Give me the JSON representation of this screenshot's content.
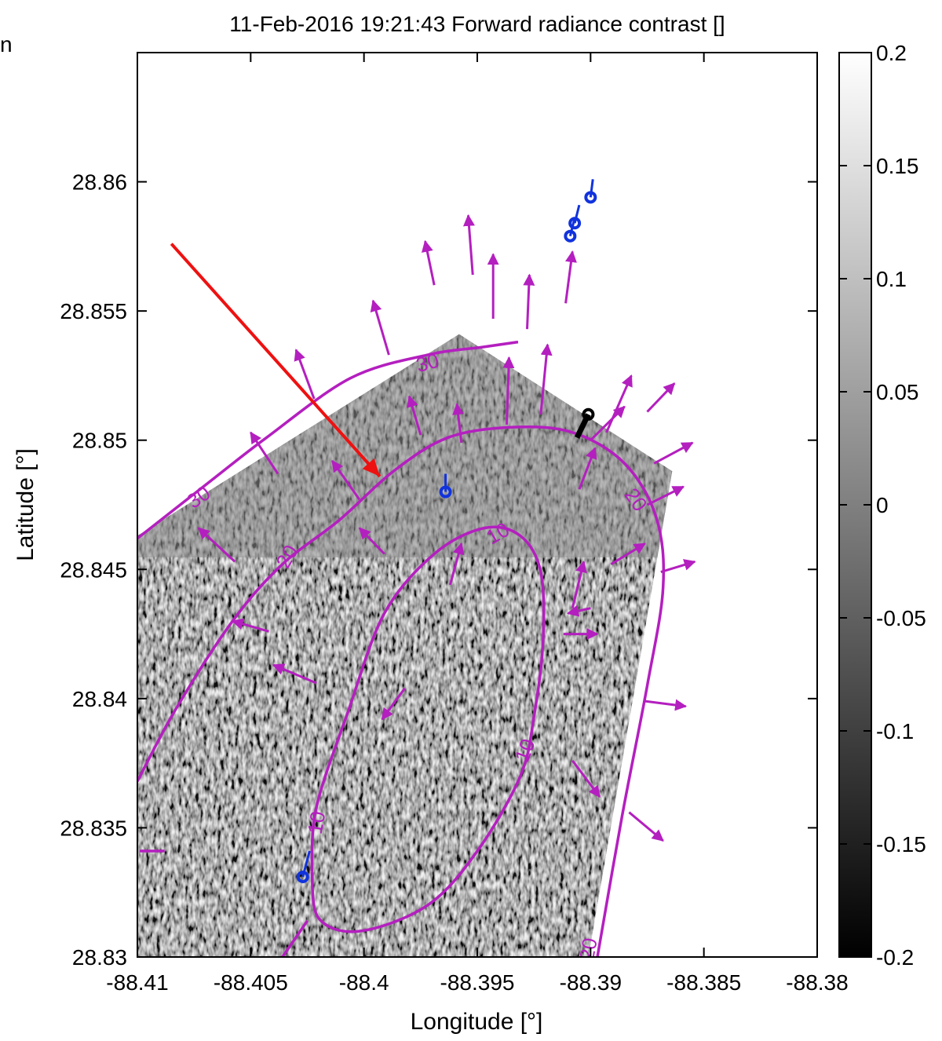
{
  "corner_text": "n",
  "chart_data": {
    "type": "heatmap",
    "title": "11-Feb-2016 19:21:43 Forward radiance contrast []",
    "xlabel": "Longitude [°]",
    "ylabel": "Latitude [°]",
    "xlim": [
      -88.41,
      -88.38
    ],
    "ylim": [
      28.83,
      28.865
    ],
    "x_ticks": [
      -88.41,
      -88.405,
      -88.4,
      -88.395,
      -88.39,
      -88.385,
      -88.38
    ],
    "x_tick_labels": [
      "-88.41",
      "-88.405",
      "-88.4",
      "-88.395",
      "-88.39",
      "-88.385",
      "-88.38"
    ],
    "y_ticks": [
      28.83,
      28.835,
      28.84,
      28.845,
      28.85,
      28.855,
      28.86
    ],
    "y_tick_labels": [
      "28.83",
      "28.835",
      "28.84",
      "28.845",
      "28.85",
      "28.855",
      "28.86"
    ],
    "colorbar": {
      "range": [
        -0.2,
        0.2
      ],
      "ticks": [
        0.2,
        0.15,
        0.1,
        0.05,
        0,
        -0.05,
        -0.1,
        -0.15,
        -0.2
      ],
      "tick_labels": [
        "0.2",
        "0.15",
        "0.1",
        "0.05",
        "0",
        "-0.05",
        "-0.1",
        "-0.15",
        "-0.2"
      ],
      "colormap": "gray"
    },
    "image_footprint": [
      [
        -88.41,
        28.8463
      ],
      [
        -88.3958,
        28.8541
      ],
      [
        -88.3864,
        28.8488
      ],
      [
        -88.3901,
        28.83
      ],
      [
        -88.41,
        28.83
      ]
    ],
    "contours": [
      {
        "level_label": "10",
        "points": [
          [
            -88.4023,
            28.8333
          ],
          [
            -88.4021,
            28.8358
          ],
          [
            -88.4007,
            28.8395
          ],
          [
            -88.3991,
            28.8433
          ],
          [
            -88.3969,
            28.8456
          ],
          [
            -88.3947,
            28.8466
          ],
          [
            -88.3931,
            28.8463
          ],
          [
            -88.3922,
            28.8449
          ],
          [
            -88.3921,
            28.8422
          ],
          [
            -88.3925,
            28.8393
          ],
          [
            -88.3931,
            28.837
          ],
          [
            -88.395,
            28.8341
          ],
          [
            -88.3972,
            28.832
          ],
          [
            -88.4002,
            28.831
          ],
          [
            -88.402,
            28.8315
          ],
          [
            -88.4023,
            28.8333
          ]
        ],
        "labels": [
          {
            "text": "10",
            "x": -88.3941,
            "y": 28.8464,
            "angle": -30
          },
          {
            "text": "10",
            "x": -88.3929,
            "y": 28.838,
            "angle": -70
          },
          {
            "text": "10",
            "x": -88.4021,
            "y": 28.8352,
            "angle": -80
          }
        ]
      },
      {
        "level_label": "20",
        "points": [
          [
            -88.41,
            28.8368
          ],
          [
            -88.4083,
            28.8396
          ],
          [
            -88.4058,
            28.843
          ],
          [
            -88.4036,
            28.8452
          ],
          [
            -88.4011,
            28.8469
          ],
          [
            -88.3987,
            28.8488
          ],
          [
            -88.3963,
            28.8501
          ],
          [
            -88.3935,
            28.8505
          ],
          [
            -88.3908,
            28.8503
          ],
          [
            -88.3885,
            28.8491
          ],
          [
            -88.3871,
            28.847
          ],
          [
            -88.3868,
            28.8443
          ],
          [
            -88.3875,
            28.8405
          ],
          [
            -88.3886,
            28.8355
          ],
          [
            -88.3897,
            28.83
          ]
        ],
        "labels": [
          {
            "text": "20",
            "x": -88.4034,
            "y": 28.8455,
            "angle": -60
          },
          {
            "text": "20",
            "x": -88.388,
            "y": 28.8477,
            "angle": 55
          },
          {
            "text": "20",
            "x": -88.3901,
            "y": 28.8303,
            "angle": -80
          }
        ]
      },
      {
        "level_label": "30",
        "points": [
          [
            -88.41,
            28.8462
          ],
          [
            -88.4068,
            28.8484
          ],
          [
            -88.4043,
            28.8501
          ],
          [
            -88.4006,
            28.8524
          ],
          [
            -88.3972,
            28.8533
          ],
          [
            -88.3948,
            28.8536
          ],
          [
            -88.3932,
            28.8538
          ]
        ],
        "labels": [
          {
            "text": "30",
            "x": -88.4073,
            "y": 28.8478,
            "angle": -35
          },
          {
            "text": "30",
            "x": -88.3972,
            "y": 28.853,
            "angle": -15
          }
        ]
      },
      {
        "level_label": "",
        "points": [
          [
            -88.4099,
            28.8341
          ],
          [
            -88.4088,
            28.8341
          ]
        ],
        "labels": []
      },
      {
        "level_label": "",
        "points": [
          [
            -88.4025,
            28.8314
          ],
          [
            -88.4036,
            28.83
          ]
        ],
        "labels": []
      }
    ],
    "vectors": [
      {
        "x": -88.4057,
        "y": 28.8453,
        "dx": -0.0016,
        "dy": 0.0013
      },
      {
        "x": -88.4038,
        "y": 28.8487,
        "dx": -0.0012,
        "dy": 0.0016
      },
      {
        "x": -88.4042,
        "y": 28.8426,
        "dx": -0.0016,
        "dy": 0.0004
      },
      {
        "x": -88.4021,
        "y": 28.8406,
        "dx": -0.0019,
        "dy": 0.0007
      },
      {
        "x": -88.4002,
        "y": 28.8477,
        "dx": -0.0012,
        "dy": 0.0015
      },
      {
        "x": -88.4022,
        "y": 28.8516,
        "dx": -0.0008,
        "dy": 0.0019
      },
      {
        "x": -88.3989,
        "y": 28.8533,
        "dx": -0.0007,
        "dy": 0.0021
      },
      {
        "x": -88.3969,
        "y": 28.856,
        "dx": -0.0004,
        "dy": 0.0017
      },
      {
        "x": -88.3952,
        "y": 28.8564,
        "dx": -0.0002,
        "dy": 0.0023
      },
      {
        "x": -88.3943,
        "y": 28.8547,
        "dx": 0.0,
        "dy": 0.0025
      },
      {
        "x": -88.3928,
        "y": 28.8543,
        "dx": 0.0001,
        "dy": 0.0021
      },
      {
        "x": -88.3911,
        "y": 28.8553,
        "dx": 0.0003,
        "dy": 0.002
      },
      {
        "x": -88.3975,
        "y": 28.8502,
        "dx": -0.0005,
        "dy": 0.0015
      },
      {
        "x": -88.3957,
        "y": 28.8499,
        "dx": -0.0002,
        "dy": 0.0015
      },
      {
        "x": -88.3937,
        "y": 28.8506,
        "dx": 0.0001,
        "dy": 0.0026
      },
      {
        "x": -88.3922,
        "y": 28.851,
        "dx": 0.0003,
        "dy": 0.0027
      },
      {
        "x": -88.3905,
        "y": 28.8481,
        "dx": 0.0007,
        "dy": 0.0016
      },
      {
        "x": -88.3893,
        "y": 28.8503,
        "dx": 0.0011,
        "dy": 0.0022
      },
      {
        "x": -88.3875,
        "y": 28.8511,
        "dx": 0.0012,
        "dy": 0.0011
      },
      {
        "x": -88.39,
        "y": 28.85,
        "dx": 0.0015,
        "dy": 0.0013
      },
      {
        "x": -88.3872,
        "y": 28.8491,
        "dx": 0.0017,
        "dy": 0.0008
      },
      {
        "x": -88.3875,
        "y": 28.8475,
        "dx": 0.0016,
        "dy": 0.0007
      },
      {
        "x": -88.3908,
        "y": 28.8435,
        "dx": 0.0005,
        "dy": 0.0018
      },
      {
        "x": -88.3891,
        "y": 28.8452,
        "dx": 0.0015,
        "dy": 0.0008
      },
      {
        "x": -88.3869,
        "y": 28.8449,
        "dx": 0.0015,
        "dy": 0.0004
      },
      {
        "x": -88.3912,
        "y": 28.8425,
        "dx": 0.0015,
        "dy": 0.0
      },
      {
        "x": -88.39,
        "y": 28.8435,
        "dx": -0.001,
        "dy": -0.0002
      },
      {
        "x": -88.3876,
        "y": 28.8399,
        "dx": 0.0018,
        "dy": -0.0002
      },
      {
        "x": -88.3908,
        "y": 28.8376,
        "dx": 0.0012,
        "dy": -0.0014
      },
      {
        "x": -88.3883,
        "y": 28.8356,
        "dx": 0.0015,
        "dy": -0.0011
      },
      {
        "x": -88.3982,
        "y": 28.8404,
        "dx": -0.001,
        "dy": -0.0012
      },
      {
        "x": -88.3962,
        "y": 28.8444,
        "dx": 0.0005,
        "dy": 0.0016
      },
      {
        "x": -88.3991,
        "y": 28.8456,
        "dx": -0.0011,
        "dy": 0.001
      }
    ],
    "annotations": [
      {
        "type": "arrow",
        "color": "#ee1111",
        "x": -88.4085,
        "y": 28.8576,
        "x2": -88.3993,
        "y2": 28.8486
      }
    ],
    "tracks": [
      {
        "color": "#1133dd",
        "marker_x": -88.3964,
        "marker_y": 28.848,
        "tail_x": -88.3964,
        "tail_y": 28.8487
      },
      {
        "color": "#1133dd",
        "marker_x": -88.4027,
        "marker_y": 28.8331,
        "tail_x": -88.4024,
        "tail_y": 28.8341
      },
      {
        "color": "#1133dd",
        "marker_x": -88.3909,
        "marker_y": 28.8579,
        "tail_x": -88.3907,
        "tail_y": 28.8586
      },
      {
        "color": "#1133dd",
        "marker_x": -88.3907,
        "marker_y": 28.8584,
        "tail_x": -88.3905,
        "tail_y": 28.8591
      },
      {
        "color": "#1133dd",
        "marker_x": -88.39,
        "marker_y": 28.8594,
        "tail_x": -88.3899,
        "tail_y": 28.8601
      },
      {
        "color": "#000000",
        "marker_x": -88.3901,
        "marker_y": 28.851,
        "tail_x": -88.3906,
        "tail_y": 28.8501
      }
    ],
    "colors": {
      "contour": "#b41fbf",
      "vector": "#b41fbf",
      "annotation_arrow": "#ee1111",
      "track": "#1133dd"
    }
  }
}
